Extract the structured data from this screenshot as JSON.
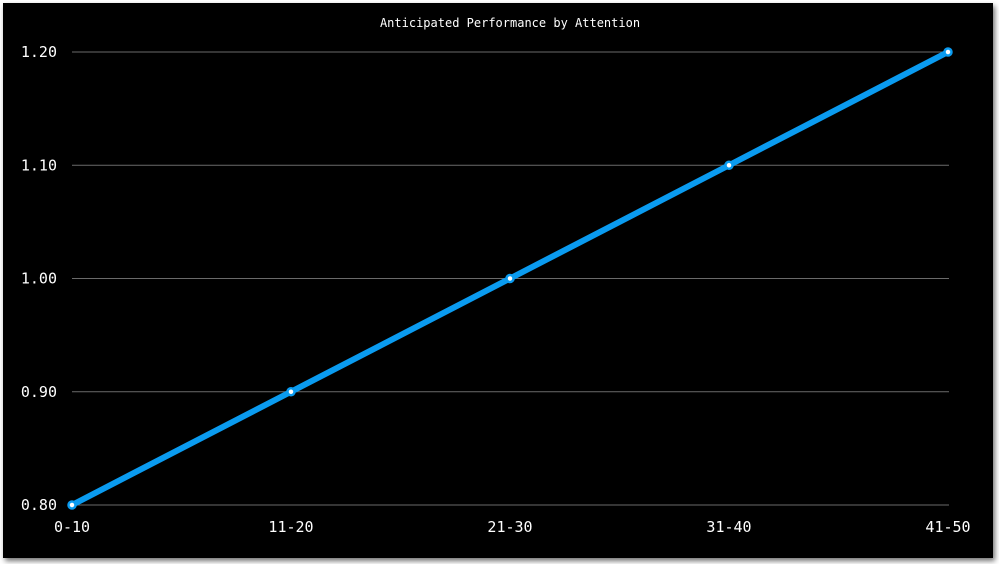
{
  "chart_data": {
    "type": "line",
    "title": "Anticipated Performance by Attention",
    "xlabel": "",
    "ylabel": "",
    "categories": [
      "0-10",
      "11-20",
      "21-30",
      "31-40",
      "41-50"
    ],
    "series": [
      {
        "values": [
          0.8,
          0.9,
          1.0,
          1.1,
          1.2
        ],
        "color": "#0a9bf0"
      }
    ],
    "y_ticks": [
      0.8,
      0.9,
      1.0,
      1.1,
      1.2
    ],
    "y_tick_labels": [
      "0.80",
      "0.90",
      "1.00",
      "1.10",
      "1.20"
    ],
    "ylim": [
      0.8,
      1.2
    ],
    "grid": true,
    "legend": "none",
    "background": "#000000"
  }
}
